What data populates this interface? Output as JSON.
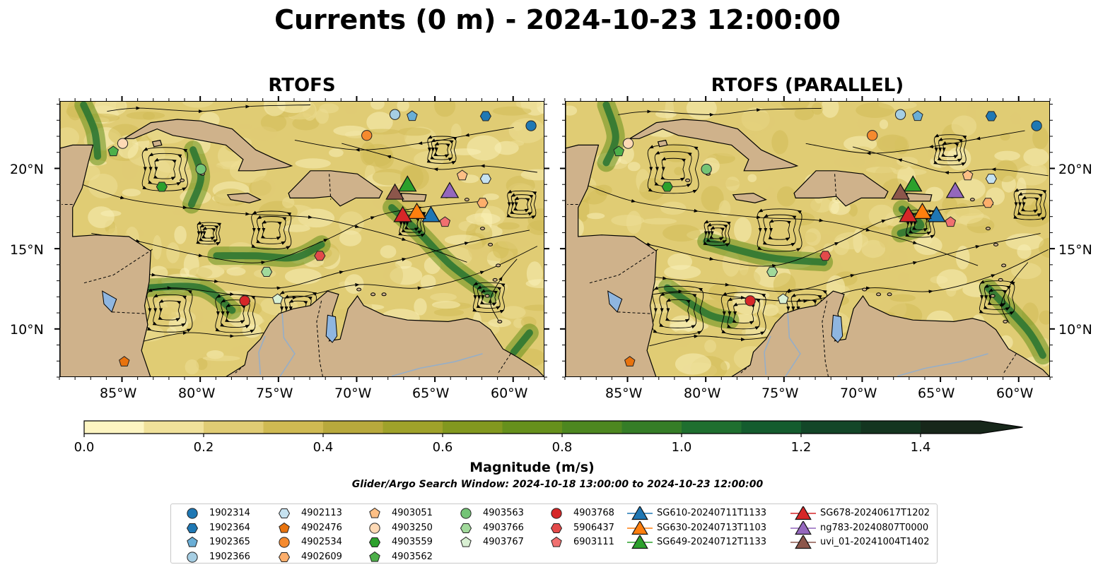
{
  "figure": {
    "suptitle": "Currents (0 m) - 2024-10-23 12:00:00",
    "panels": [
      {
        "title": "RTOFS"
      },
      {
        "title": "RTOFS (PARALLEL)"
      }
    ],
    "lon_ticks": [
      "85°W",
      "80°W",
      "75°W",
      "70°W",
      "65°W",
      "60°W"
    ],
    "lat_ticks": [
      "20°N",
      "15°N",
      "10°N"
    ],
    "map_extent": {
      "lon": [
        -89,
        -58
      ],
      "lat": [
        7,
        24.2
      ]
    },
    "colors": {
      "land": "#cfb28b",
      "lakes": "#8fb6e0",
      "rivers": "#96aec7"
    }
  },
  "colorbar": {
    "title": "Magnitude (m/s)",
    "tick_labels": [
      "0.0",
      "0.2",
      "0.4",
      "0.6",
      "0.8",
      "1.0",
      "1.2",
      "1.4"
    ],
    "range": [
      0,
      1.5
    ],
    "extend": "max",
    "colors": [
      "#fdf5c2",
      "#f0e19a",
      "#e0cc74",
      "#cfba52",
      "#b8a93c",
      "#9fa22a",
      "#82981f",
      "#66901c",
      "#4d8720",
      "#357d27",
      "#1f6f2f",
      "#145c2e",
      "#134628",
      "#143520",
      "#17271a"
    ]
  },
  "search_window": "Glider/Argo Search Window: 2024-10-18 13:00:00 to 2024-10-23 12:00:00",
  "legend": {
    "columns": [
      [
        {
          "label": "1902314",
          "marker": "circle",
          "color": "#1f78b4"
        },
        {
          "label": "1902364",
          "marker": "hexagon",
          "color": "#1f78b4"
        },
        {
          "label": "1902365",
          "marker": "pentagon",
          "color": "#6aaed6"
        },
        {
          "label": "1902366",
          "marker": "circle",
          "color": "#a6cee3"
        }
      ],
      [
        {
          "label": "4902113",
          "marker": "hexagon",
          "color": "#c6e2f0"
        },
        {
          "label": "4902476",
          "marker": "pentagon",
          "color": "#e8730e"
        },
        {
          "label": "4902534",
          "marker": "circle",
          "color": "#f58a2e"
        },
        {
          "label": "4902609",
          "marker": "hexagon",
          "color": "#fdae6b"
        }
      ],
      [
        {
          "label": "4903051",
          "marker": "pentagon",
          "color": "#fdbf85"
        },
        {
          "label": "4903250",
          "marker": "circle",
          "color": "#fdd9b5"
        },
        {
          "label": "4903559",
          "marker": "hexagon",
          "color": "#2ca02c"
        },
        {
          "label": "4903562",
          "marker": "pentagon",
          "color": "#4daf4a"
        }
      ],
      [
        {
          "label": "4903563",
          "marker": "circle",
          "color": "#74c476"
        },
        {
          "label": "4903766",
          "marker": "hexagon",
          "color": "#a1d99b"
        },
        {
          "label": "4903767",
          "marker": "pentagon",
          "color": "#d9f0d3"
        }
      ],
      [
        {
          "label": "4903768",
          "marker": "circle",
          "color": "#d62728"
        },
        {
          "label": "5906437",
          "marker": "hexagon",
          "color": "#e34a4a"
        },
        {
          "label": "6903111",
          "marker": "pentagon",
          "color": "#f07070"
        }
      ],
      [
        {
          "label": "SG610-20240711T1133",
          "marker": "triangle",
          "color": "#1f77b4"
        },
        {
          "label": "SG630-20240713T1103",
          "marker": "triangle",
          "color": "#ff7f0e"
        },
        {
          "label": "SG649-20240712T1133",
          "marker": "triangle",
          "color": "#2ca02c"
        }
      ],
      [
        {
          "label": "SG678-20240617T1202",
          "marker": "triangle",
          "color": "#d62728"
        },
        {
          "label": "ng783-20240807T0000",
          "marker": "triangle",
          "color": "#9467bd"
        },
        {
          "label": "uvi_01-20241004T1402",
          "marker": "triangle",
          "color": "#8c564b"
        }
      ]
    ]
  },
  "platforms": [
    {
      "id": "1902314",
      "marker": "circle",
      "color": "#1f78b4",
      "lon": -58.9,
      "lat": 22.7
    },
    {
      "id": "1902364",
      "marker": "hexagon",
      "color": "#1f78b4",
      "lon": -61.8,
      "lat": 23.3
    },
    {
      "id": "1902365",
      "marker": "pentagon",
      "color": "#6aaed6",
      "lon": -66.5,
      "lat": 23.3
    },
    {
      "id": "1902366",
      "marker": "circle",
      "color": "#a6cee3",
      "lon": -67.6,
      "lat": 23.4
    },
    {
      "id": "4902113",
      "marker": "hexagon",
      "color": "#c6e2f0",
      "lon": -61.8,
      "lat": 19.4
    },
    {
      "id": "4902476",
      "marker": "pentagon",
      "color": "#e8730e",
      "lon": -84.9,
      "lat": 8.0
    },
    {
      "id": "4902534",
      "marker": "circle",
      "color": "#f58a2e",
      "lon": -69.4,
      "lat": 22.1
    },
    {
      "id": "4902609",
      "marker": "hexagon",
      "color": "#fdae6b",
      "lon": -62.0,
      "lat": 17.9
    },
    {
      "id": "4903051",
      "marker": "pentagon",
      "color": "#fdbf85",
      "lon": -63.3,
      "lat": 19.6
    },
    {
      "id": "4903250",
      "marker": "circle",
      "color": "#fdd9b5",
      "lon": -85.0,
      "lat": 21.6
    },
    {
      "id": "4903559",
      "marker": "hexagon",
      "color": "#2ca02c",
      "lon": -82.5,
      "lat": 18.9
    },
    {
      "id": "4903562",
      "marker": "pentagon",
      "color": "#4daf4a",
      "lon": -85.6,
      "lat": 21.1
    },
    {
      "id": "4903563",
      "marker": "circle",
      "color": "#74c476",
      "lon": -80.0,
      "lat": 20.0
    },
    {
      "id": "4903766",
      "marker": "hexagon",
      "color": "#a1d99b",
      "lon": -75.8,
      "lat": 13.6
    },
    {
      "id": "4903767",
      "marker": "pentagon",
      "color": "#d9f0d3",
      "lon": -75.1,
      "lat": 11.9
    },
    {
      "id": "4903768",
      "marker": "circle",
      "color": "#d62728",
      "lon": -77.2,
      "lat": 11.8
    },
    {
      "id": "5906437",
      "marker": "hexagon",
      "color": "#e34a4a",
      "lon": -72.4,
      "lat": 14.6
    },
    {
      "id": "6903111",
      "marker": "pentagon",
      "color": "#f07070",
      "lon": -64.4,
      "lat": 16.7
    },
    {
      "id": "SG610-20240711T1133",
      "marker": "triangle",
      "color": "#1f77b4",
      "lon": -65.3,
      "lat": 17.1
    },
    {
      "id": "SG630-20240713T1103",
      "marker": "triangle",
      "color": "#ff7f0e",
      "lon": -66.2,
      "lat": 17.3
    },
    {
      "id": "SG649-20240712T1133",
      "marker": "triangle",
      "color": "#2ca02c",
      "lon": -66.8,
      "lat": 19.0
    },
    {
      "id": "SG678-20240617T1202",
      "marker": "triangle",
      "color": "#d62728",
      "lon": -67.1,
      "lat": 17.1
    },
    {
      "id": "ng783-20240807T0000",
      "marker": "triangle",
      "color": "#9467bd",
      "lon": -64.1,
      "lat": 18.6
    },
    {
      "id": "uvi_01-20241004T1402",
      "marker": "triangle",
      "color": "#8c564b",
      "lon": -67.6,
      "lat": 18.5
    }
  ]
}
